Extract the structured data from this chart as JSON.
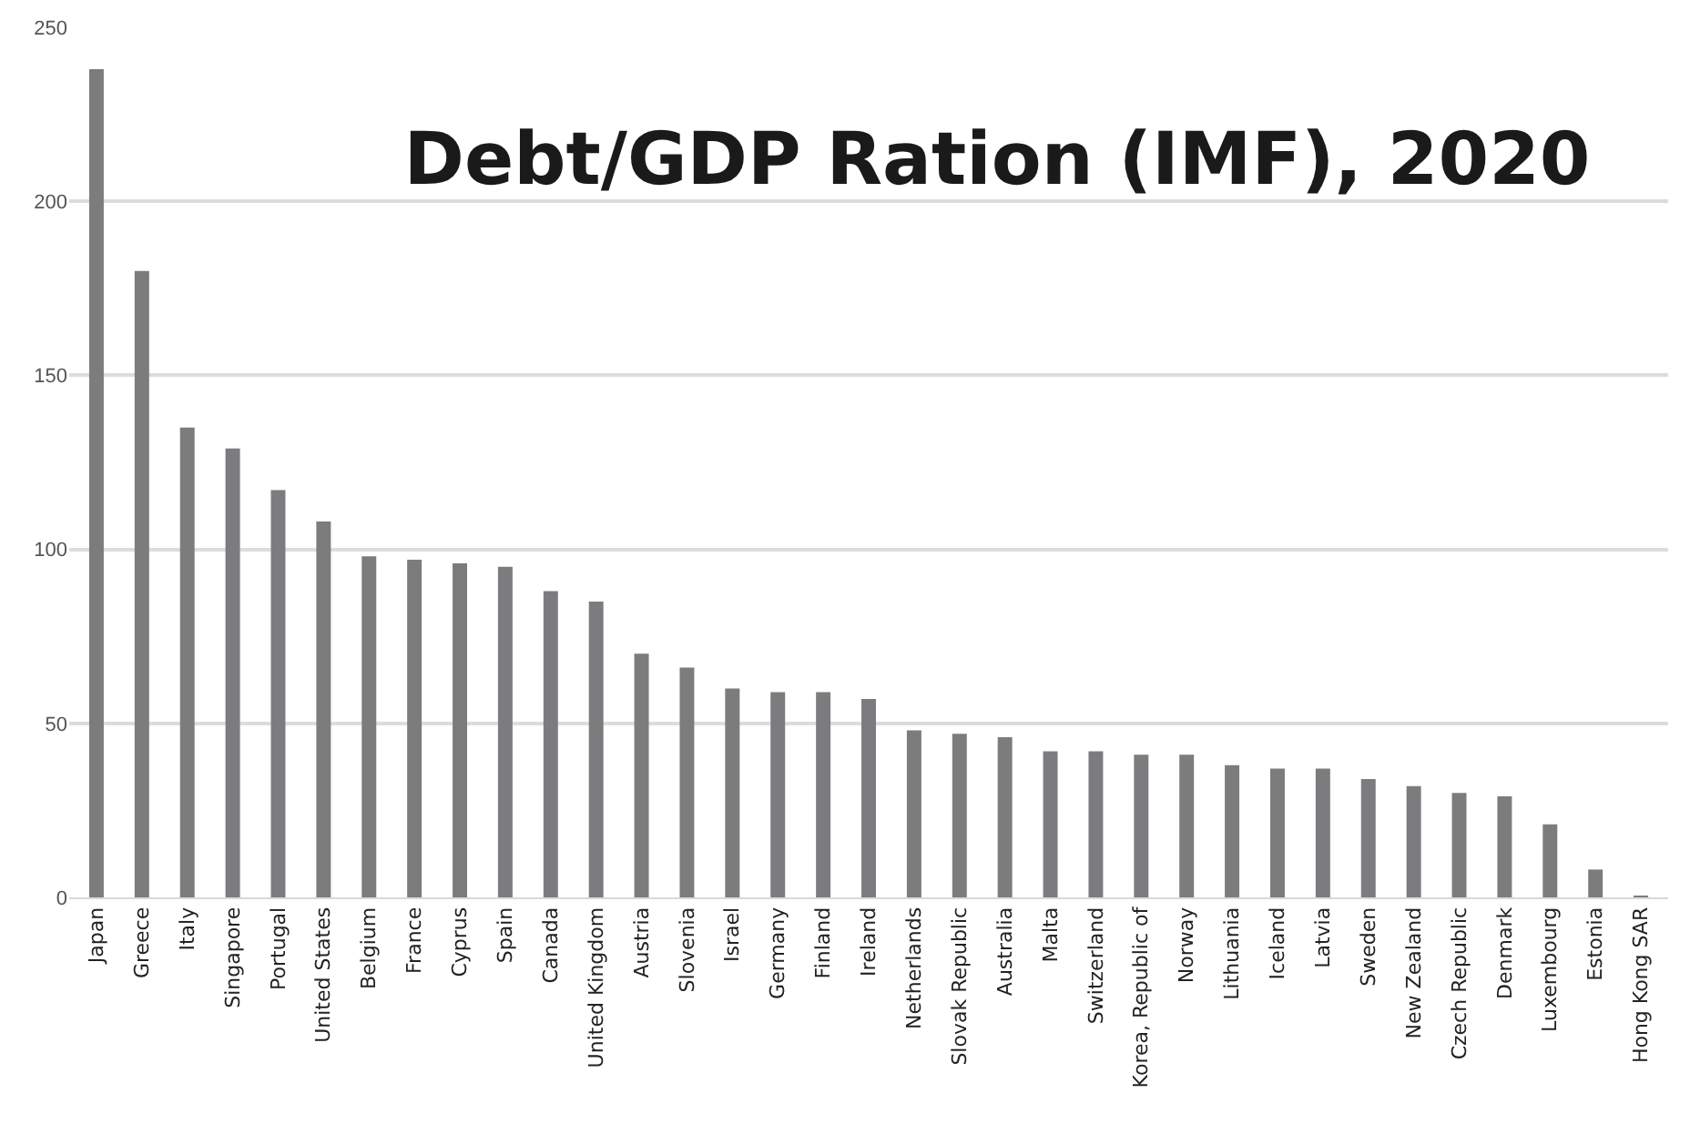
{
  "chart_data": {
    "type": "bar",
    "title": "Debt/GDP Ration (IMF), 2020",
    "categories": [
      "Japan",
      "Greece",
      "Italy",
      "Singapore",
      "Portugal",
      "United States",
      "Belgium",
      "France",
      "Cyprus",
      "Spain",
      "Canada",
      "United Kingdom",
      "Austria",
      "Slovenia",
      "Israel",
      "Germany",
      "Finland",
      "Ireland",
      "Netherlands",
      "Slovak Republic",
      "Australia",
      "Malta",
      "Switzerland",
      "Korea, Republic of",
      "Norway",
      "Lithuania",
      "Iceland",
      "Latvia",
      "Sweden",
      "New Zealand",
      "Czech Republic",
      "Denmark",
      "Luxembourg",
      "Estonia",
      "Hong Kong SAR"
    ],
    "values": [
      238,
      180,
      135,
      129,
      117,
      108,
      98,
      97,
      96,
      95,
      88,
      85,
      70,
      66,
      60,
      59,
      59,
      57,
      48,
      47,
      46,
      42,
      42,
      41,
      41,
      38,
      37,
      37,
      34,
      32,
      30,
      29,
      21,
      8,
      0.5
    ],
    "color": "#7c7c7e",
    "ylim": [
      0,
      250
    ],
    "yticks": [
      0,
      50,
      100,
      150,
      200,
      250
    ],
    "grid": "y"
  }
}
